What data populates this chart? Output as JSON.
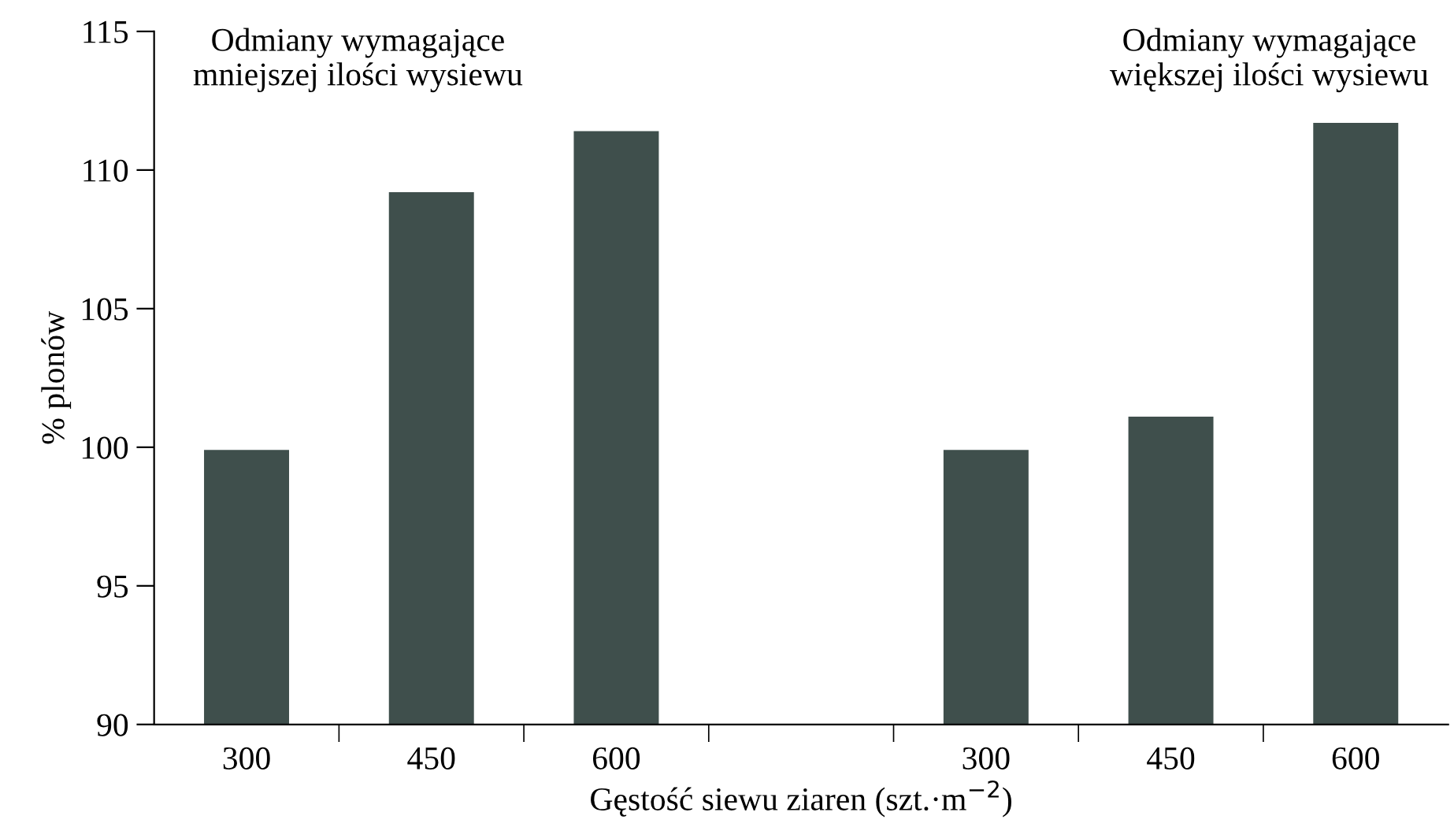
{
  "chart_data": {
    "type": "bar",
    "xlabel": "Gęstość siewu ziaren (szt.·m$^{−2}$)",
    "ylabel": "% plonów",
    "categories": [
      "300",
      "450",
      "600",
      null,
      "300",
      "450",
      "600"
    ],
    "values": [
      99.9,
      109.2,
      111.4,
      null,
      99.9,
      101.1,
      111.7
    ],
    "color": "#3f4f4c",
    "ylim": [
      90,
      115
    ],
    "yticks": [
      90,
      95,
      100,
      105,
      110,
      115
    ],
    "grid": false,
    "legend": false,
    "annotations": [
      "Odmiany wymagające\nmniejszej ilości wysiewu",
      "Odmiany wymagające\nwiększej ilości wysiewu"
    ]
  }
}
